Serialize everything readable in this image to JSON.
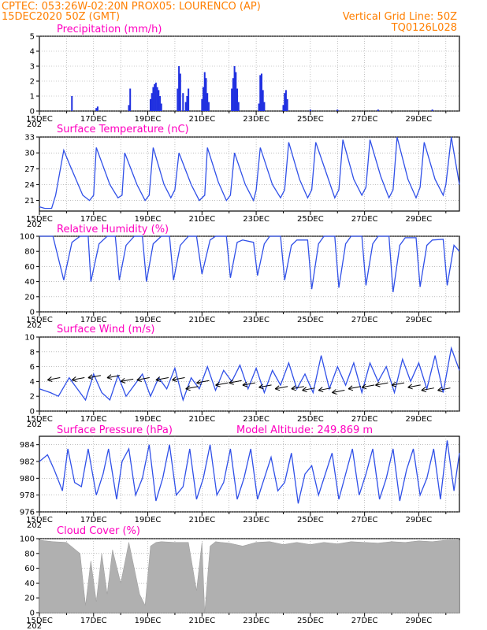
{
  "header": {
    "left_line1": "CPTEC:   053:26W-02:20N   PROX05: LOURENCO (AP)",
    "left_line2": "15DEC2020 50Z (GMT)",
    "right_line2": "Vertical Grid Line: 50Z",
    "right_line3": "TQ0126L028"
  },
  "x_axis": {
    "ticks": [
      "15DEC",
      "17DEC",
      "19DEC",
      "21DEC",
      "23DEC",
      "25DEC",
      "27DEC",
      "29DEC"
    ],
    "left_stub": "202"
  },
  "colors": {
    "line": "#3050e8",
    "bar": "#2030e0",
    "cloud": "#b0b0b0",
    "title": "#ff00c0",
    "header": "#ff7f00"
  },
  "chart_data": [
    {
      "type": "bar",
      "title": "Precipitation (mm/h)",
      "ylim": [
        0,
        5
      ],
      "yticks": [
        "0",
        "1",
        "2",
        "3",
        "4",
        "5"
      ],
      "x_range_days": [
        0,
        15.5
      ],
      "bars": [
        [
          1.2,
          1.0
        ],
        [
          2.1,
          0.2
        ],
        [
          2.15,
          0.3
        ],
        [
          3.3,
          0.4
        ],
        [
          3.35,
          1.5
        ],
        [
          4.1,
          0.8
        ],
        [
          4.15,
          1.2
        ],
        [
          4.2,
          1.6
        ],
        [
          4.25,
          1.8
        ],
        [
          4.3,
          1.9
        ],
        [
          4.35,
          1.6
        ],
        [
          4.4,
          1.4
        ],
        [
          4.45,
          1.0
        ],
        [
          4.5,
          0.5
        ],
        [
          5.1,
          1.5
        ],
        [
          5.15,
          3.0
        ],
        [
          5.2,
          2.5
        ],
        [
          5.3,
          1.2
        ],
        [
          5.4,
          0.6
        ],
        [
          5.45,
          1.0
        ],
        [
          5.5,
          1.5
        ],
        [
          6.0,
          0.8
        ],
        [
          6.05,
          1.6
        ],
        [
          6.1,
          2.6
        ],
        [
          6.15,
          2.2
        ],
        [
          6.2,
          1.2
        ],
        [
          6.25,
          0.6
        ],
        [
          7.1,
          1.5
        ],
        [
          7.15,
          2.2
        ],
        [
          7.2,
          3.0
        ],
        [
          7.25,
          2.6
        ],
        [
          7.3,
          1.5
        ],
        [
          7.35,
          0.6
        ],
        [
          8.1,
          0.5
        ],
        [
          8.15,
          2.4
        ],
        [
          8.2,
          2.5
        ],
        [
          8.25,
          1.4
        ],
        [
          8.3,
          0.6
        ],
        [
          9.0,
          0.4
        ],
        [
          9.05,
          1.2
        ],
        [
          9.1,
          1.4
        ],
        [
          9.15,
          0.8
        ],
        [
          10.0,
          0.1
        ],
        [
          11.0,
          0.1
        ],
        [
          12.5,
          0.1
        ],
        [
          14.5,
          0.1
        ]
      ]
    },
    {
      "type": "line",
      "title": "Surface Temperature (nC)",
      "ylim": [
        19,
        33
      ],
      "yticks": [
        "21",
        "24",
        "27",
        "30",
        "33"
      ],
      "x_range_days": [
        0,
        15.5
      ],
      "x": [
        0,
        0.2,
        0.45,
        0.6,
        0.9,
        1.1,
        1.6,
        1.85,
        2.0,
        2.1,
        2.6,
        2.9,
        3.05,
        3.15,
        3.6,
        3.9,
        4.05,
        4.2,
        4.6,
        4.85,
        5.0,
        5.15,
        5.6,
        5.9,
        6.1,
        6.2,
        6.6,
        6.9,
        7.05,
        7.2,
        7.6,
        7.9,
        8.0,
        8.15,
        8.6,
        8.9,
        9.05,
        9.2,
        9.6,
        9.9,
        10.05,
        10.2,
        10.6,
        10.9,
        11.05,
        11.2,
        11.6,
        11.9,
        12.05,
        12.2,
        12.6,
        12.9,
        13.05,
        13.2,
        13.6,
        13.9,
        14.05,
        14.2,
        14.6,
        14.9,
        15.0,
        15.2,
        15.5
      ],
      "y": [
        19.8,
        19.5,
        19.5,
        22,
        30.5,
        28,
        22,
        21,
        22,
        31,
        24,
        21.5,
        22,
        30,
        24,
        21,
        22,
        31,
        24,
        21.5,
        23,
        30,
        24,
        21,
        22,
        31,
        24.5,
        21,
        22,
        30,
        24,
        21,
        23,
        31,
        24,
        21.5,
        23,
        32,
        25,
        21.5,
        23,
        32,
        26,
        21.5,
        23,
        32.5,
        25,
        22,
        23.5,
        32.5,
        25.5,
        21.5,
        23,
        33,
        25,
        21.5,
        23.5,
        32,
        25,
        22,
        24,
        33,
        24
      ]
    },
    {
      "type": "line",
      "title": "Relative Humidity (%)",
      "ylim": [
        0,
        100
      ],
      "yticks": [
        "0",
        "20",
        "40",
        "60",
        "80",
        "100"
      ],
      "x_range_days": [
        0,
        15.5
      ],
      "x": [
        0,
        0.3,
        0.5,
        0.9,
        1.2,
        1.5,
        1.8,
        1.9,
        2.2,
        2.5,
        2.8,
        2.95,
        3.2,
        3.5,
        3.8,
        3.95,
        4.2,
        4.5,
        4.8,
        4.95,
        5.2,
        5.5,
        5.8,
        6.0,
        6.3,
        6.5,
        6.9,
        7.05,
        7.3,
        7.5,
        7.9,
        8.05,
        8.3,
        8.5,
        8.9,
        9.05,
        9.3,
        9.5,
        9.9,
        10.05,
        10.3,
        10.5,
        10.9,
        11.05,
        11.3,
        11.5,
        11.9,
        12.05,
        12.3,
        12.5,
        12.9,
        13.05,
        13.3,
        13.5,
        13.9,
        14.05,
        14.3,
        14.5,
        14.9,
        15.05,
        15.3,
        15.5
      ],
      "y": [
        100,
        100,
        100,
        42,
        92,
        100,
        100,
        40,
        90,
        100,
        100,
        42,
        88,
        100,
        100,
        40,
        90,
        100,
        100,
        42,
        88,
        100,
        100,
        50,
        95,
        100,
        100,
        45,
        92,
        95,
        92,
        48,
        90,
        100,
        100,
        42,
        88,
        95,
        95,
        30,
        90,
        100,
        100,
        32,
        90,
        100,
        100,
        35,
        90,
        100,
        100,
        26,
        88,
        98,
        98,
        33,
        88,
        95,
        96,
        35,
        88,
        80
      ]
    },
    {
      "type": "line",
      "title": "Surface Wind (m/s)",
      "ylim": [
        0,
        10
      ],
      "yticks": [
        "0",
        "2",
        "4",
        "6",
        "8",
        "10"
      ],
      "x_range_days": [
        0,
        15.5
      ],
      "x": [
        0,
        0.4,
        0.7,
        1.1,
        1.4,
        1.7,
        2.0,
        2.3,
        2.6,
        2.9,
        3.2,
        3.5,
        3.8,
        4.1,
        4.4,
        4.7,
        5.0,
        5.3,
        5.6,
        5.9,
        6.2,
        6.5,
        6.8,
        7.1,
        7.4,
        7.7,
        8.0,
        8.3,
        8.6,
        8.9,
        9.2,
        9.5,
        9.8,
        10.1,
        10.4,
        10.7,
        11.0,
        11.3,
        11.6,
        11.9,
        12.2,
        12.5,
        12.8,
        13.1,
        13.4,
        13.7,
        14.0,
        14.3,
        14.6,
        14.9,
        15.2,
        15.5
      ],
      "y": [
        3,
        2.5,
        2.0,
        4.5,
        3.0,
        1.5,
        5.0,
        2.5,
        1.5,
        4.8,
        2.0,
        3.5,
        5.0,
        2.0,
        4.5,
        3.0,
        5.8,
        1.5,
        4.5,
        3.0,
        6.0,
        2.8,
        5.5,
        4.0,
        6.2,
        3.0,
        5.8,
        2.5,
        5.5,
        3.5,
        6.5,
        3.0,
        5.0,
        2.5,
        7.5,
        3.0,
        6.0,
        3.5,
        6.5,
        2.5,
        6.5,
        4.0,
        6.0,
        2.5,
        7.0,
        4.0,
        6.5,
        3.0,
        7.5,
        2.5,
        8.5,
        5.5
      ],
      "arrows": [
        [
          0.3,
          4.2
        ],
        [
          1.2,
          4.2
        ],
        [
          1.8,
          4.5
        ],
        [
          2.5,
          4.5
        ],
        [
          3.0,
          4.0
        ],
        [
          3.6,
          4.2
        ],
        [
          4.3,
          4.2
        ],
        [
          4.9,
          4.2
        ],
        [
          5.4,
          3.0
        ],
        [
          5.8,
          3.8
        ],
        [
          6.5,
          3.5
        ],
        [
          7.0,
          3.8
        ],
        [
          7.5,
          3.5
        ],
        [
          8.1,
          3.2
        ],
        [
          8.7,
          3.0
        ],
        [
          9.3,
          3.0
        ],
        [
          9.7,
          2.8
        ],
        [
          10.3,
          2.8
        ],
        [
          10.8,
          2.5
        ],
        [
          11.4,
          3.0
        ],
        [
          11.9,
          3.2
        ],
        [
          12.4,
          3.5
        ],
        [
          13.0,
          3.5
        ],
        [
          13.6,
          3.2
        ],
        [
          14.1,
          2.8
        ],
        [
          14.7,
          2.8
        ]
      ]
    },
    {
      "type": "line",
      "title": "Surface Pressure (hPa)",
      "subtitle": "Model Altitude: 249.869  m",
      "ylim": [
        976,
        985
      ],
      "yticks": [
        "976",
        "978",
        "980",
        "982",
        "984"
      ],
      "x_range_days": [
        0,
        15.5
      ],
      "x": [
        0,
        0.3,
        0.55,
        0.85,
        1.05,
        1.3,
        1.55,
        1.8,
        2.1,
        2.35,
        2.55,
        2.85,
        3.05,
        3.3,
        3.55,
        3.8,
        4.05,
        4.3,
        4.55,
        4.8,
        5.05,
        5.3,
        5.55,
        5.8,
        6.05,
        6.3,
        6.55,
        6.8,
        7.05,
        7.3,
        7.55,
        7.8,
        8.05,
        8.3,
        8.55,
        8.8,
        9.05,
        9.3,
        9.55,
        9.8,
        10.05,
        10.3,
        10.55,
        10.8,
        11.05,
        11.3,
        11.55,
        11.8,
        12.05,
        12.3,
        12.55,
        12.8,
        13.05,
        13.3,
        13.55,
        13.8,
        14.05,
        14.3,
        14.55,
        14.8,
        15.05,
        15.3,
        15.5
      ],
      "y": [
        982,
        982.8,
        981,
        978.5,
        983.5,
        979.5,
        979,
        983.5,
        978,
        980.5,
        983.5,
        977.5,
        982,
        983.5,
        978,
        980,
        984,
        977.3,
        980,
        984,
        978,
        979,
        983.5,
        977.5,
        980,
        984,
        978,
        979.5,
        983.5,
        977.5,
        980,
        983.5,
        977.5,
        980,
        982.5,
        978.5,
        979.5,
        983,
        977,
        980.5,
        981.5,
        978,
        980.5,
        983,
        977.5,
        980.5,
        983.5,
        978,
        980.5,
        983.5,
        977.5,
        980,
        983.5,
        977.3,
        981,
        983.5,
        978,
        980,
        983.5,
        977.5,
        984.5,
        978.5,
        983
      ]
    },
    {
      "type": "area",
      "title": "Cloud Cover (%)",
      "ylim": [
        0,
        100
      ],
      "yticks": [
        "0",
        "20",
        "40",
        "60",
        "80",
        "100"
      ],
      "x_range_days": [
        0,
        15.5
      ],
      "x": [
        0,
        0.5,
        1.0,
        1.5,
        1.7,
        1.9,
        2.1,
        2.3,
        2.5,
        2.7,
        3.0,
        3.3,
        3.5,
        3.7,
        3.9,
        4.1,
        4.3,
        4.5,
        5.0,
        5.5,
        5.8,
        6.0,
        6.1,
        6.3,
        6.5,
        6.7,
        7.0,
        7.5,
        8.0,
        8.5,
        9.0,
        9.5,
        10.0,
        10.5,
        11.0,
        11.5,
        12.0,
        12.5,
        13.0,
        13.5,
        14.0,
        14.5,
        15.0,
        15.5
      ],
      "y": [
        98,
        96,
        95,
        80,
        10,
        70,
        15,
        80,
        25,
        85,
        40,
        95,
        60,
        25,
        10,
        90,
        95,
        96,
        95,
        95,
        30,
        95,
        0,
        90,
        96,
        95,
        94,
        90,
        95,
        96,
        92,
        95,
        92,
        95,
        93,
        96,
        95,
        94,
        96,
        95,
        97,
        96,
        98,
        98
      ]
    }
  ]
}
